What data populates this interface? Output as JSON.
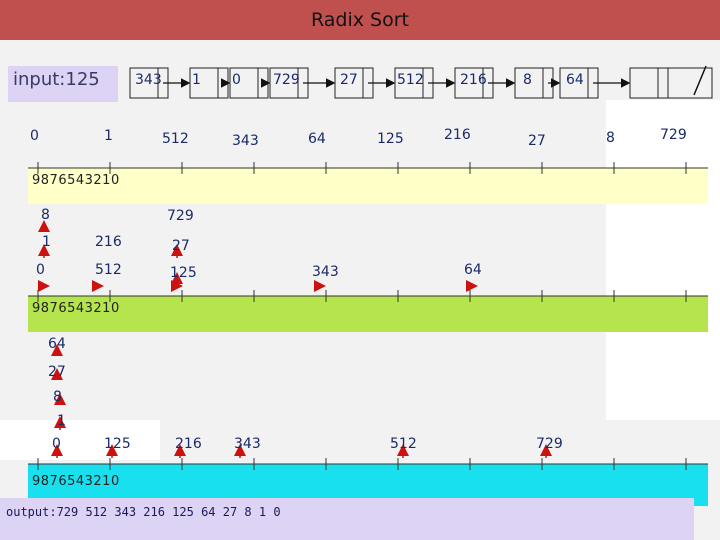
{
  "title": "Radix Sort",
  "input": {
    "label": "input:",
    "first": "125",
    "list_nodes": [
      "343",
      "1",
      "0",
      "729",
      "27",
      "512",
      "216",
      "8",
      "64"
    ]
  },
  "digit_scale": "9876543210",
  "pass1": {
    "labels": [
      "0",
      "1",
      "512",
      "343",
      "64",
      "125",
      "216",
      "27",
      "8",
      "729"
    ]
  },
  "pass2": {
    "labels": [
      "8",
      "729",
      "1",
      "216",
      "27",
      "0",
      "512",
      "125",
      "343",
      "64"
    ]
  },
  "pass3": {
    "labels": [
      "64",
      "27",
      "8",
      "1",
      "0",
      "125",
      "216",
      "343",
      "512",
      "729"
    ]
  },
  "output": {
    "label": "output:",
    "values": "729  512  343  216  125  64  27  8  1  0"
  },
  "colors": {
    "title_bar": "#c0504d",
    "input_box": "#dcd3f5",
    "pass1_band": "#ffffc8",
    "pass2_band": "#b5e44c",
    "pass3_band": "#19e0ee",
    "arrow": "#cc1111"
  }
}
